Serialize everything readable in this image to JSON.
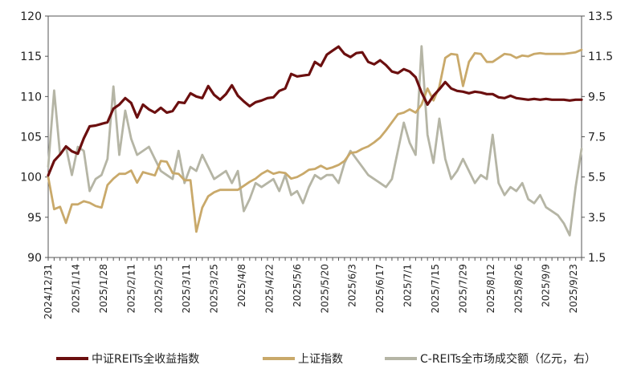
{
  "chart_data": {
    "type": "line",
    "title": "",
    "x_labels": [
      "2024/12/31",
      "2025/1/14",
      "2025/1/28",
      "2025/2/11",
      "2025/2/25",
      "2025/3/11",
      "2025/3/25",
      "2025/4/8",
      "2025/4/22",
      "2025/5/6",
      "2025/5/20",
      "2025/6/3",
      "2025/6/17",
      "2025/7/1",
      "2025/7/15",
      "2025/7/29",
      "2025/8/12",
      "2025/8/26",
      "2025/9/9",
      "2025/9/23"
    ],
    "y_left": {
      "ticks": [
        90,
        95,
        100,
        105,
        110,
        115,
        120
      ],
      "range": [
        90,
        120
      ]
    },
    "y_right": {
      "ticks": [
        "1.5",
        "3.5",
        "5.5",
        "7.5",
        "9.5",
        "11.5",
        "13.5"
      ],
      "range": [
        1.5,
        13.5
      ]
    },
    "grid": false,
    "legend_position": "bottom",
    "series": [
      {
        "name": "中证REITs全收益指数",
        "axis": "left",
        "color": "#6b0f0f",
        "x": [
          0,
          3,
          6,
          9,
          12,
          15,
          18,
          21,
          24,
          27,
          30,
          33,
          36,
          39,
          42,
          45,
          48,
          51,
          54,
          57,
          60,
          63,
          66,
          69,
          72,
          75,
          78,
          81,
          84,
          87,
          90,
          93,
          96,
          99,
          102,
          105,
          108,
          111,
          114,
          117,
          120,
          123,
          126,
          129,
          132,
          135,
          138,
          141,
          144,
          147,
          150,
          153,
          156,
          159,
          162,
          165,
          168,
          171,
          174,
          177,
          180,
          183,
          186,
          189,
          192,
          195,
          198,
          201,
          204,
          207,
          210,
          213,
          216,
          219,
          222,
          225,
          228,
          231,
          234,
          237,
          240,
          243,
          246,
          249,
          252,
          255,
          258,
          261,
          264,
          267,
          270
        ],
        "values": [
          100.2,
          102.0,
          102.8,
          103.8,
          103.2,
          102.9,
          104.8,
          106.3,
          106.4,
          106.6,
          106.8,
          108.5,
          109.0,
          109.8,
          109.2,
          107.4,
          109.0,
          108.4,
          108.0,
          108.6,
          108.0,
          108.2,
          109.3,
          109.2,
          110.4,
          110.0,
          109.8,
          111.3,
          110.2,
          109.6,
          110.3,
          111.4,
          110.1,
          109.4,
          108.8,
          109.3,
          109.5,
          109.8,
          109.9,
          110.7,
          111.0,
          112.8,
          112.5,
          112.6,
          112.7,
          114.3,
          113.8,
          115.2,
          115.7,
          116.2,
          115.3,
          114.9,
          115.4,
          115.5,
          114.3,
          114.0,
          114.5,
          113.9,
          113.1,
          112.9,
          113.4,
          113.1,
          112.4,
          110.5,
          109.0,
          110.1,
          110.9,
          111.8,
          111.0,
          110.7,
          110.6,
          110.4,
          110.6,
          110.5,
          110.3,
          110.3,
          109.9,
          109.8,
          110.1,
          109.8,
          109.7,
          109.6,
          109.7,
          109.6,
          109.7,
          109.6,
          109.6,
          109.6,
          109.5,
          109.6,
          109.6
        ]
      },
      {
        "name": "上证指数",
        "axis": "left",
        "color": "#c9a96a",
        "x": [
          0,
          3,
          6,
          9,
          12,
          15,
          18,
          21,
          24,
          27,
          30,
          33,
          36,
          39,
          42,
          45,
          48,
          51,
          54,
          57,
          60,
          63,
          66,
          69,
          72,
          75,
          78,
          81,
          84,
          87,
          90,
          93,
          96,
          99,
          102,
          105,
          108,
          111,
          114,
          117,
          120,
          123,
          126,
          129,
          132,
          135,
          138,
          141,
          144,
          147,
          150,
          153,
          156,
          159,
          162,
          165,
          168,
          171,
          174,
          177,
          180,
          183,
          186,
          189,
          192,
          195,
          198,
          201,
          204,
          207,
          210,
          213,
          216,
          219,
          222,
          225,
          228,
          231,
          234,
          237,
          240,
          243,
          246,
          249,
          252,
          255,
          258,
          261,
          264,
          267,
          270
        ],
        "values": [
          100.0,
          96.0,
          96.3,
          94.3,
          96.6,
          96.6,
          97.0,
          96.8,
          96.4,
          96.2,
          99.0,
          99.8,
          100.4,
          100.4,
          100.8,
          99.3,
          100.6,
          100.4,
          100.2,
          102.0,
          101.9,
          100.5,
          100.4,
          99.6,
          99.6,
          93.2,
          96.2,
          97.6,
          98.1,
          98.4,
          98.4,
          98.4,
          98.4,
          98.9,
          99.4,
          99.8,
          100.4,
          100.8,
          100.4,
          100.6,
          100.5,
          99.8,
          100.0,
          100.4,
          100.9,
          101.0,
          101.4,
          101.0,
          101.2,
          101.5,
          102.0,
          103.0,
          103.1,
          103.5,
          103.8,
          104.3,
          104.9,
          105.8,
          106.8,
          107.8,
          108.0,
          108.4,
          108.0,
          109.0,
          111.0,
          109.5,
          111.2,
          114.8,
          115.3,
          115.2,
          111.3,
          114.3,
          115.4,
          115.3,
          114.3,
          114.3,
          114.8,
          115.3,
          115.2,
          114.8,
          115.1,
          115.0,
          115.3,
          115.4,
          115.3,
          115.3,
          115.3,
          115.3,
          115.4,
          115.5,
          115.8
        ]
      },
      {
        "name": "C-REITs全市场成交额（亿元，右）",
        "axis": "right",
        "color": "#b5b5a5",
        "x": [
          0,
          3,
          6,
          9,
          12,
          15,
          18,
          21,
          24,
          27,
          30,
          33,
          36,
          39,
          42,
          45,
          48,
          51,
          54,
          57,
          60,
          63,
          66,
          69,
          72,
          75,
          78,
          81,
          84,
          87,
          90,
          93,
          96,
          99,
          102,
          105,
          108,
          111,
          114,
          117,
          120,
          123,
          126,
          129,
          132,
          135,
          138,
          141,
          144,
          147,
          150,
          153,
          156,
          159,
          162,
          165,
          168,
          171,
          174,
          177,
          180,
          183,
          186,
          189,
          192,
          195,
          198,
          201,
          204,
          207,
          210,
          213,
          216,
          219,
          222,
          225,
          228,
          231,
          234,
          237,
          240,
          243,
          246,
          249,
          252,
          255,
          258,
          261,
          264,
          267,
          270
        ],
        "values": [
          6.0,
          9.8,
          6.6,
          7.0,
          5.6,
          7.0,
          6.8,
          4.8,
          5.4,
          5.6,
          6.4,
          10.0,
          6.6,
          8.8,
          7.4,
          6.6,
          6.8,
          7.0,
          6.4,
          5.8,
          5.6,
          5.4,
          6.8,
          5.2,
          6.0,
          5.8,
          6.6,
          6.0,
          5.4,
          5.6,
          5.8,
          5.2,
          5.8,
          3.8,
          4.4,
          5.2,
          5.0,
          5.2,
          5.4,
          4.8,
          5.6,
          4.6,
          4.8,
          4.2,
          5.0,
          5.6,
          5.4,
          5.6,
          5.6,
          5.2,
          6.2,
          6.8,
          6.4,
          6.0,
          5.6,
          5.4,
          5.2,
          5.0,
          5.4,
          6.8,
          8.2,
          7.2,
          6.6,
          12.0,
          7.6,
          6.2,
          8.4,
          6.4,
          5.4,
          5.8,
          6.4,
          5.8,
          5.2,
          5.6,
          5.4,
          7.6,
          5.2,
          4.6,
          5.0,
          4.8,
          5.2,
          4.4,
          4.2,
          4.6,
          4.0,
          3.8,
          3.6,
          3.2,
          2.6,
          5.0,
          6.9
        ]
      }
    ]
  }
}
